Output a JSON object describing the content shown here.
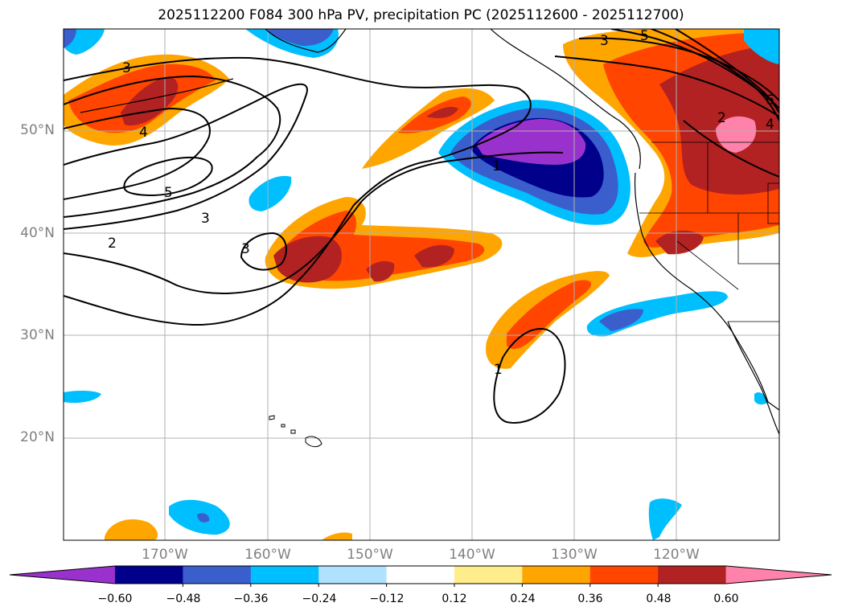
{
  "title": "2025112200 F084 300 hPa PV, precipitation PC (2025112600 - 2025112700)",
  "lat_labels": [
    "50°N",
    "40°N",
    "30°N",
    "20°N"
  ],
  "lon_labels": [
    "170°W",
    "160°W",
    "150°W",
    "140°W",
    "130°W",
    "120°W"
  ],
  "contour_labels": [
    "3",
    "4",
    "5",
    "3",
    "2",
    "3",
    "1",
    "1",
    "3",
    "5",
    "2",
    "4",
    "6"
  ],
  "colorbar": {
    "tick_labels": [
      "−0.60",
      "−0.48",
      "−0.36",
      "−0.24",
      "−0.12",
      "0.12",
      "0.24",
      "0.36",
      "0.48",
      "0.60"
    ],
    "colors": [
      "#9932cc",
      "#00008b",
      "#3a5fcd",
      "#00bfff",
      "#b0e2ff",
      "#ffffff",
      "#ffec8b",
      "#ffa500",
      "#ff4500",
      "#b22222",
      "#ff82ab"
    ]
  }
}
